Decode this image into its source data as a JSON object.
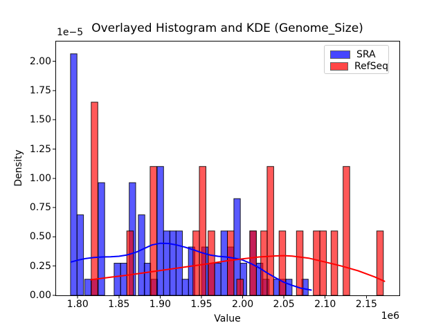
{
  "chart_data": {
    "type": "histogram+kde",
    "title": "Overlayed Histogram and KDE (Genome_Size)",
    "xlabel": "Value",
    "ylabel": "Density",
    "x_offset_label": "1e6",
    "y_offset_label": "1e−5",
    "xlim": [
      1.773,
      2.19
    ],
    "ylim": [
      0,
      2.175
    ],
    "x_ticks": [
      1.8,
      1.85,
      1.9,
      1.95,
      2.0,
      2.05,
      2.1,
      2.15
    ],
    "x_tick_labels": [
      "1.80",
      "1.85",
      "1.90",
      "1.95",
      "2.00",
      "2.05",
      "2.10",
      "2.15"
    ],
    "y_ticks": [
      0.0,
      0.25,
      0.5,
      0.75,
      1.0,
      1.25,
      1.5,
      1.75,
      2.0
    ],
    "y_tick_labels": [
      "0.00",
      "0.25",
      "0.50",
      "0.75",
      "1.00",
      "1.25",
      "1.50",
      "1.75",
      "2.00"
    ],
    "grid": false,
    "legend_position": "upper right",
    "x_unit_scale": "1e6",
    "y_unit_scale": "1e-5",
    "series": [
      {
        "name": "SRA",
        "color": "#0000ff",
        "bin_width": 0.0078,
        "bars": [
          {
            "x0": 1.7914,
            "h": 2.064
          },
          {
            "x0": 1.7993,
            "h": 0.688
          },
          {
            "x0": 1.8086,
            "h": 0.138
          },
          {
            "x0": 1.8165,
            "h": 0.138
          },
          {
            "x0": 1.8249,
            "h": 0.963
          },
          {
            "x0": 1.8442,
            "h": 0.275
          },
          {
            "x0": 1.852,
            "h": 0.275
          },
          {
            "x0": 1.8625,
            "h": 0.963
          },
          {
            "x0": 1.8736,
            "h": 0.688
          },
          {
            "x0": 1.8807,
            "h": 0.275
          },
          {
            "x0": 1.8891,
            "h": 0.138
          },
          {
            "x0": 1.8963,
            "h": 1.101
          },
          {
            "x0": 1.9041,
            "h": 0.55
          },
          {
            "x0": 1.9116,
            "h": 0.55
          },
          {
            "x0": 1.9192,
            "h": 0.55
          },
          {
            "x0": 1.9267,
            "h": 0.138
          },
          {
            "x0": 1.9343,
            "h": 0.413
          },
          {
            "x0": 1.9504,
            "h": 0.413
          },
          {
            "x0": 1.9582,
            "h": 0.275
          },
          {
            "x0": 1.9659,
            "h": 0.275
          },
          {
            "x0": 1.9737,
            "h": 0.55
          },
          {
            "x0": 1.9815,
            "h": 0.413
          },
          {
            "x0": 1.9894,
            "h": 0.826
          },
          {
            "x0": 1.9972,
            "h": 0.275
          },
          {
            "x0": 2.0087,
            "h": 0.55
          },
          {
            "x0": 2.0167,
            "h": 0.275
          },
          {
            "x0": 2.0243,
            "h": 0.138
          },
          {
            "x0": 2.0373,
            "h": 0.138
          },
          {
            "x0": 2.0448,
            "h": 0.138
          },
          {
            "x0": 2.0521,
            "h": 0.138
          },
          {
            "x0": 2.0717,
            "h": 0.138
          }
        ],
        "kde": [
          [
            1.792,
            0.285
          ],
          [
            1.8,
            0.3
          ],
          [
            1.81,
            0.315
          ],
          [
            1.82,
            0.324
          ],
          [
            1.83,
            0.328
          ],
          [
            1.84,
            0.33
          ],
          [
            1.85,
            0.334
          ],
          [
            1.86,
            0.345
          ],
          [
            1.87,
            0.366
          ],
          [
            1.88,
            0.398
          ],
          [
            1.89,
            0.43
          ],
          [
            1.9,
            0.445
          ],
          [
            1.91,
            0.443
          ],
          [
            1.92,
            0.43
          ],
          [
            1.93,
            0.412
          ],
          [
            1.94,
            0.39
          ],
          [
            1.95,
            0.365
          ],
          [
            1.96,
            0.345
          ],
          [
            1.97,
            0.334
          ],
          [
            1.98,
            0.328
          ],
          [
            1.99,
            0.318
          ],
          [
            2.0,
            0.302
          ],
          [
            2.01,
            0.272
          ],
          [
            2.02,
            0.235
          ],
          [
            2.03,
            0.19
          ],
          [
            2.04,
            0.15
          ],
          [
            2.05,
            0.112
          ],
          [
            2.06,
            0.085
          ],
          [
            2.07,
            0.062
          ],
          [
            2.083,
            0.045
          ]
        ]
      },
      {
        "name": "RefSeq",
        "color": "#ff0000",
        "bin_width": 0.008,
        "bars": [
          {
            "x0": 1.8165,
            "h": 1.651
          },
          {
            "x0": 1.8596,
            "h": 0.55
          },
          {
            "x0": 1.8879,
            "h": 1.101
          },
          {
            "x0": 1.9397,
            "h": 0.55
          },
          {
            "x0": 1.9475,
            "h": 1.101
          },
          {
            "x0": 1.9582,
            "h": 0.55
          },
          {
            "x0": 1.9815,
            "h": 0.55
          },
          {
            "x0": 1.9928,
            "h": 0.138
          },
          {
            "x0": 2.0087,
            "h": 0.55
          },
          {
            "x0": 2.0219,
            "h": 0.55
          },
          {
            "x0": 2.0297,
            "h": 1.101
          },
          {
            "x0": 2.0442,
            "h": 0.55
          },
          {
            "x0": 2.0652,
            "h": 0.55
          },
          {
            "x0": 2.0857,
            "h": 0.55
          },
          {
            "x0": 2.0935,
            "h": 0.55
          },
          {
            "x0": 2.1072,
            "h": 0.55
          },
          {
            "x0": 2.1218,
            "h": 1.101
          },
          {
            "x0": 2.1626,
            "h": 0.55
          }
        ],
        "kde": [
          [
            1.816,
            0.133
          ],
          [
            1.84,
            0.155
          ],
          [
            1.86,
            0.172
          ],
          [
            1.88,
            0.192
          ],
          [
            1.9,
            0.212
          ],
          [
            1.92,
            0.232
          ],
          [
            1.94,
            0.252
          ],
          [
            1.96,
            0.272
          ],
          [
            1.98,
            0.294
          ],
          [
            2.0,
            0.312
          ],
          [
            2.02,
            0.328
          ],
          [
            2.04,
            0.337
          ],
          [
            2.05,
            0.339
          ],
          [
            2.06,
            0.336
          ],
          [
            2.08,
            0.318
          ],
          [
            2.1,
            0.285
          ],
          [
            2.12,
            0.25
          ],
          [
            2.14,
            0.21
          ],
          [
            2.16,
            0.158
          ],
          [
            2.172,
            0.12
          ]
        ]
      }
    ]
  }
}
